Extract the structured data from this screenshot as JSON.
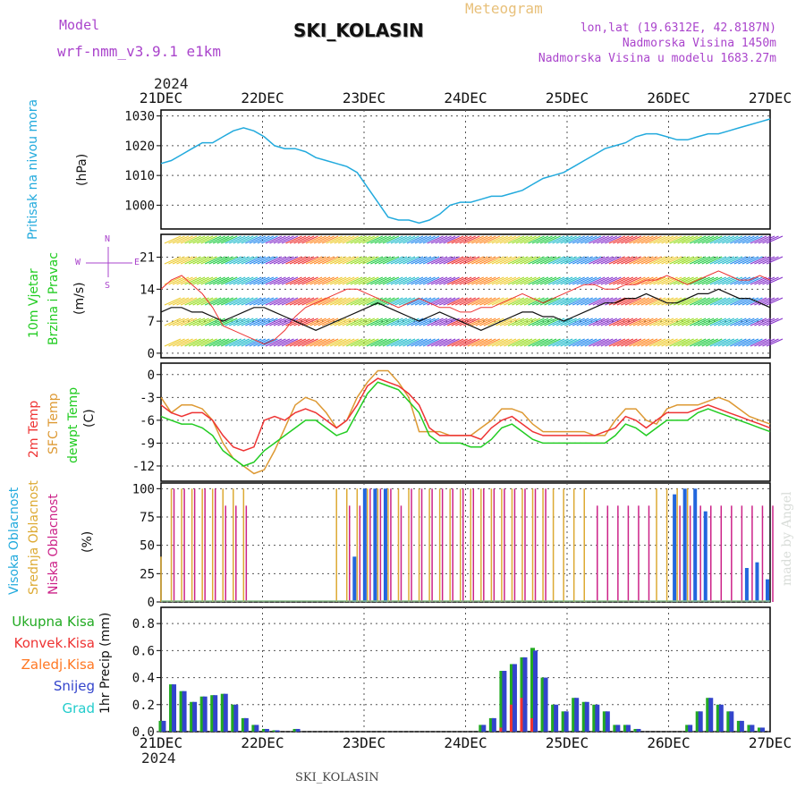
{
  "header": {
    "title": "SKI_KOLASIN",
    "subtitle": "Meteogram",
    "model_label": "Model",
    "model_name": "wrf-nmm_v3.9.1 e1km",
    "coords": "lon,lat (19.6312E, 42.8187N)",
    "altitude": "Nadmorska Visina 1450m",
    "model_altitude": "Nadmorska Visina u modelu 1683.27m",
    "year_top": "2024",
    "year_bottom": "2024",
    "footer": "SKI_KOLASIN",
    "watermark": "made by Angel"
  },
  "wind_legend": {
    "n": "N",
    "s": "S",
    "w": "W",
    "e": "E"
  },
  "colors": {
    "pressure": "#22aadd",
    "temp2m": "#ee3333",
    "sfc": "#dd9933",
    "dewpt": "#22cc22",
    "high_cloud": "#2266dd",
    "mid_cloud": "#ddaa33",
    "low_cloud": "#cc2288",
    "total_precip": "#22aa22",
    "conv_precip": "#ee3333",
    "frz_precip": "#ff7722",
    "snow": "#3344cc",
    "hail": "#22cccc",
    "purple": "#aa44cc"
  },
  "chart_data": [
    {
      "type": "line",
      "name": "pressure",
      "ylabels": [
        "Pritisak na nivou mora",
        "(hPa)"
      ],
      "yticks": [
        1000,
        1010,
        1020,
        1030
      ],
      "ylim": [
        992,
        1032
      ],
      "x_ticks": [
        "21DEC",
        "22DEC",
        "23DEC",
        "24DEC",
        "25DEC",
        "26DEC",
        "27DEC"
      ],
      "series": [
        {
          "values": [
            1014,
            1015,
            1017,
            1019,
            1021,
            1021,
            1023,
            1025,
            1026,
            1025,
            1023,
            1020,
            1019,
            1019,
            1018,
            1016,
            1015,
            1014,
            1013,
            1011,
            1006,
            1001,
            996,
            995,
            995,
            994,
            995,
            997,
            1000,
            1001,
            1001,
            1002,
            1003,
            1003,
            1004,
            1005,
            1007,
            1009,
            1010,
            1011,
            1013,
            1015,
            1017,
            1019,
            1020,
            1021,
            1023,
            1024,
            1024,
            1023,
            1022,
            1022,
            1023,
            1024,
            1024,
            1025,
            1026,
            1027,
            1028,
            1029
          ]
        }
      ]
    },
    {
      "type": "line",
      "name": "wind",
      "ylabels": [
        "10m Vjetar",
        "Brzina i Pravac",
        "(m/s)"
      ],
      "yticks": [
        0,
        7,
        14,
        21
      ],
      "ylim": [
        -1,
        26
      ],
      "series": [
        {
          "values": [
            9,
            10,
            10,
            9,
            9,
            8,
            7,
            8,
            9,
            10,
            10,
            9,
            8,
            7,
            6,
            5,
            6,
            7,
            8,
            9,
            10,
            11,
            10,
            9,
            8,
            7,
            8,
            9,
            8,
            7,
            6,
            5,
            6,
            7,
            8,
            9,
            9,
            8,
            8,
            7,
            8,
            9,
            10,
            11,
            11,
            12,
            12,
            13,
            12,
            11,
            11,
            12,
            13,
            13,
            14,
            13,
            12,
            12,
            11,
            10
          ]
        },
        {
          "values": [
            14,
            16,
            17,
            15,
            13,
            10,
            6,
            5,
            4,
            3,
            2,
            3,
            5,
            8,
            10,
            11,
            12,
            13,
            14,
            14,
            13,
            12,
            11,
            10,
            11,
            12,
            11,
            10,
            10,
            9,
            9,
            10,
            10,
            11,
            12,
            13,
            12,
            11,
            12,
            13,
            14,
            15,
            15,
            14,
            14,
            15,
            15,
            16,
            16,
            17,
            16,
            15,
            16,
            17,
            18,
            17,
            16,
            16,
            17,
            16
          ]
        }
      ]
    },
    {
      "type": "line",
      "name": "temperature",
      "ylabels": [
        "2m Temp",
        "SFC Temp",
        "dewpt Temp",
        "(C)"
      ],
      "yticks": [
        0,
        -3,
        -6,
        -9,
        -12
      ],
      "ylim": [
        -14,
        1.5
      ],
      "series": [
        {
          "name": "2m Temp",
          "values": [
            -4,
            -5,
            -5.5,
            -5,
            -5,
            -6,
            -8,
            -9.5,
            -10,
            -9.5,
            -6,
            -5.5,
            -6,
            -5,
            -4.5,
            -5,
            -6,
            -7,
            -6,
            -4,
            -1.5,
            -0.5,
            -1,
            -1.5,
            -2.5,
            -4,
            -7,
            -8,
            -8,
            -8,
            -8,
            -8.5,
            -7,
            -6,
            -5.5,
            -6.5,
            -7.5,
            -8,
            -8,
            -8,
            -8,
            -8,
            -8,
            -7.5,
            -7,
            -5.5,
            -6,
            -7,
            -6,
            -5,
            -5,
            -5,
            -4.5,
            -4,
            -4.5,
            -5,
            -5.5,
            -6,
            -6.5,
            -7
          ]
        },
        {
          "name": "SFC Temp",
          "values": [
            -3,
            -5,
            -4,
            -4,
            -4.5,
            -6,
            -9,
            -11,
            -12,
            -13,
            -12.5,
            -10,
            -7,
            -4,
            -3,
            -3.5,
            -5,
            -7,
            -6,
            -3,
            -1,
            0.5,
            0.5,
            -1,
            -3,
            -7.5,
            -7.5,
            -7.5,
            -8,
            -8,
            -8,
            -7,
            -6,
            -4.5,
            -4.5,
            -5,
            -6.5,
            -7.5,
            -7.5,
            -7.5,
            -7.5,
            -7.5,
            -8,
            -8,
            -6,
            -4.5,
            -4.5,
            -6,
            -6.5,
            -4.5,
            -4,
            -4,
            -4,
            -3.5,
            -3,
            -3.5,
            -4.5,
            -5.5,
            -6,
            -6.5
          ]
        },
        {
          "name": "dewpt Temp",
          "values": [
            -5.5,
            -6,
            -6.5,
            -6.5,
            -7,
            -8,
            -10,
            -11,
            -12,
            -11.5,
            -10,
            -9,
            -8,
            -7,
            -6,
            -6,
            -7,
            -8,
            -7.5,
            -5,
            -2.5,
            -1,
            -1.5,
            -2,
            -3.5,
            -5,
            -8,
            -9,
            -9,
            -9,
            -9.5,
            -9.5,
            -8.5,
            -7,
            -6.5,
            -7.5,
            -8.5,
            -9,
            -9,
            -9,
            -9,
            -9,
            -9,
            -9,
            -8,
            -6.5,
            -7,
            -8,
            -7,
            -6,
            -6,
            -6,
            -5,
            -4.5,
            -5,
            -5.5,
            -6,
            -6.5,
            -7,
            -7.5
          ]
        }
      ]
    },
    {
      "type": "bar",
      "name": "clouds",
      "ylabels": [
        "Visoka Oblacnost",
        "Srednja Oblacnost",
        "Niska Oblacnost",
        "(%)"
      ],
      "yticks": [
        0,
        25,
        50,
        75,
        100
      ],
      "ylim": [
        0,
        105
      ],
      "series": [
        {
          "name": "Visoka Oblacnost",
          "values": [
            0,
            0,
            0,
            0,
            0,
            0,
            0,
            0,
            0,
            0,
            0,
            0,
            0,
            0,
            0,
            0,
            0,
            0,
            0,
            40,
            100,
            100,
            100,
            0,
            0,
            0,
            0,
            0,
            0,
            0,
            0,
            0,
            0,
            0,
            0,
            0,
            0,
            0,
            0,
            0,
            0,
            0,
            0,
            0,
            0,
            0,
            0,
            0,
            0,
            0,
            95,
            100,
            100,
            80,
            0,
            0,
            0,
            30,
            35,
            20
          ]
        },
        {
          "name": "Srednja Oblacnost",
          "values": [
            40,
            100,
            100,
            100,
            100,
            100,
            100,
            100,
            100,
            0,
            0,
            0,
            0,
            0,
            0,
            0,
            0,
            100,
            100,
            100,
            100,
            100,
            100,
            100,
            100,
            100,
            100,
            100,
            100,
            100,
            100,
            100,
            100,
            100,
            100,
            100,
            100,
            100,
            100,
            100,
            100,
            100,
            0,
            0,
            0,
            0,
            0,
            0,
            100,
            100,
            100,
            100,
            0,
            0,
            0,
            0,
            0,
            0,
            0,
            0
          ]
        },
        {
          "name": "Niska Oblacnost",
          "values": [
            0,
            100,
            100,
            100,
            100,
            100,
            85,
            85,
            85,
            0,
            0,
            0,
            0,
            0,
            0,
            0,
            0,
            0,
            85,
            85,
            100,
            100,
            100,
            85,
            100,
            100,
            100,
            100,
            100,
            100,
            100,
            100,
            100,
            100,
            100,
            100,
            100,
            100,
            0,
            0,
            0,
            0,
            85,
            85,
            85,
            85,
            85,
            85,
            0,
            0,
            85,
            85,
            85,
            85,
            85,
            85,
            85,
            85,
            85,
            85
          ]
        }
      ]
    },
    {
      "type": "bar",
      "name": "precipitation",
      "ylabels": [
        "1hr Precip (mm)"
      ],
      "legend": [
        "Ukupna Kisa",
        "Konvek.Kisa",
        "Zaledj.Kisa",
        "Snijeg",
        "Grad"
      ],
      "yticks": [
        0.0,
        0.2,
        0.4,
        0.6,
        0.8
      ],
      "ylim": [
        0,
        0.92
      ],
      "x_ticks": [
        "21DEC",
        "22DEC",
        "23DEC",
        "24DEC",
        "25DEC",
        "26DEC",
        "27DEC"
      ],
      "series": [
        {
          "name": "Ukupna Kisa",
          "values": [
            0.08,
            0.35,
            0.3,
            0.22,
            0.26,
            0.27,
            0.28,
            0.2,
            0.1,
            0.05,
            0.02,
            0.01,
            0,
            0.02,
            0,
            0,
            0,
            0,
            0,
            0,
            0,
            0,
            0,
            0,
            0,
            0,
            0,
            0,
            0,
            0,
            0,
            0.05,
            0.1,
            0.45,
            0.5,
            0.55,
            0.62,
            0.4,
            0.2,
            0.15,
            0.25,
            0.22,
            0.2,
            0.15,
            0.05,
            0.05,
            0.02,
            0,
            0,
            0,
            0,
            0.05,
            0.15,
            0.25,
            0.2,
            0.15,
            0.08,
            0.05,
            0.03,
            0
          ]
        },
        {
          "name": "Snijeg",
          "values": [
            0.08,
            0.35,
            0.3,
            0.22,
            0.26,
            0.27,
            0.28,
            0.2,
            0.1,
            0.05,
            0.02,
            0.01,
            0,
            0.02,
            0,
            0,
            0,
            0,
            0,
            0,
            0,
            0,
            0,
            0,
            0,
            0,
            0,
            0,
            0,
            0,
            0,
            0.05,
            0.1,
            0.45,
            0.5,
            0.55,
            0.6,
            0.4,
            0.2,
            0.15,
            0.25,
            0.22,
            0.2,
            0.15,
            0.05,
            0.05,
            0.02,
            0,
            0,
            0,
            0,
            0.05,
            0.15,
            0.25,
            0.2,
            0.15,
            0.08,
            0.05,
            0.03,
            0
          ]
        },
        {
          "name": "Konvek.Kisa",
          "values": [
            0,
            0,
            0,
            0,
            0,
            0,
            0,
            0,
            0,
            0,
            0,
            0,
            0,
            0,
            0,
            0,
            0,
            0,
            0,
            0,
            0,
            0,
            0,
            0,
            0,
            0,
            0,
            0,
            0,
            0,
            0,
            0,
            0,
            0.03,
            0.2,
            0.25,
            0.1,
            0,
            0,
            0,
            0,
            0,
            0,
            0,
            0,
            0,
            0,
            0,
            0,
            0,
            0,
            0,
            0,
            0,
            0,
            0,
            0,
            0,
            0,
            0
          ]
        }
      ]
    }
  ]
}
